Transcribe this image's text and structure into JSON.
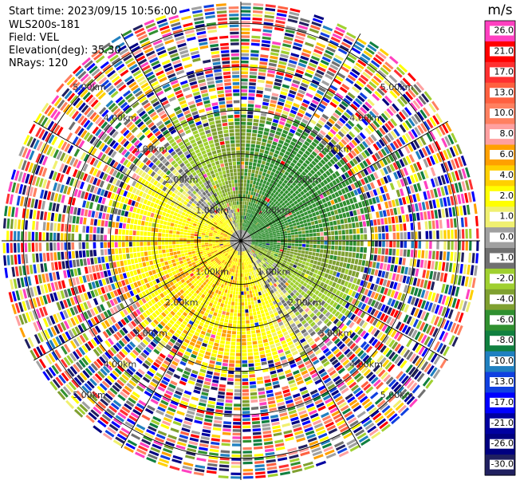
{
  "header": {
    "start_time": "Start time: 2023/09/15 10:56:00",
    "instrument": "WLS200s-181",
    "field": "Field: VEL",
    "elevation": "Elevation(deg): 35.30",
    "nrays": "NRays: 120"
  },
  "chart_data": {
    "type": "heatmap",
    "projection": "polar-ppi",
    "field": "VEL",
    "elevation_deg": 35.3,
    "n_rays": 120,
    "max_range_km": 5.5,
    "range_rings_km": [
      1.0,
      2.0,
      3.0,
      4.0,
      5.0
    ],
    "ring_labels": [
      "1.00km",
      "2.00km",
      "3.00km",
      "4.00km",
      "5.00km"
    ],
    "spokes_deg": [
      0,
      30,
      60,
      90,
      120,
      150,
      180,
      210,
      240,
      270,
      300,
      330
    ],
    "colorbar": {
      "unit": "m/s",
      "ticks": [
        "26.0",
        "21.0",
        "17.0",
        "13.0",
        "10.0",
        "8.0",
        "6.0",
        "4.0",
        "2.0",
        "1.0",
        "0.0",
        "-1.0",
        "-2.0",
        "-4.0",
        "-6.0",
        "-8.0",
        "-10.0",
        "-13.0",
        "-17.0",
        "-21.0",
        "-26.0",
        "-30.0"
      ],
      "colors": [
        "#ff40c0",
        "#ff0000",
        "#ff3030",
        "#ff6040",
        "#ff8060",
        "#ffa0a0",
        "#ffa000",
        "#ffd000",
        "#ffff00",
        "#f0f070",
        "#a0a0a0",
        "#707070",
        "#a0d030",
        "#7fa030",
        "#309030",
        "#108040",
        "#2080c0",
        "#1040e0",
        "#0000ff",
        "#0000a0",
        "#000080",
        "#202060"
      ]
    },
    "description_fields": {
      "near_field": "velocity near zero with positive (yellow/orange) to the west and negative (green) to the south/east",
      "far_field": "noisy multicolor returns beyond ~2.5 km"
    }
  }
}
